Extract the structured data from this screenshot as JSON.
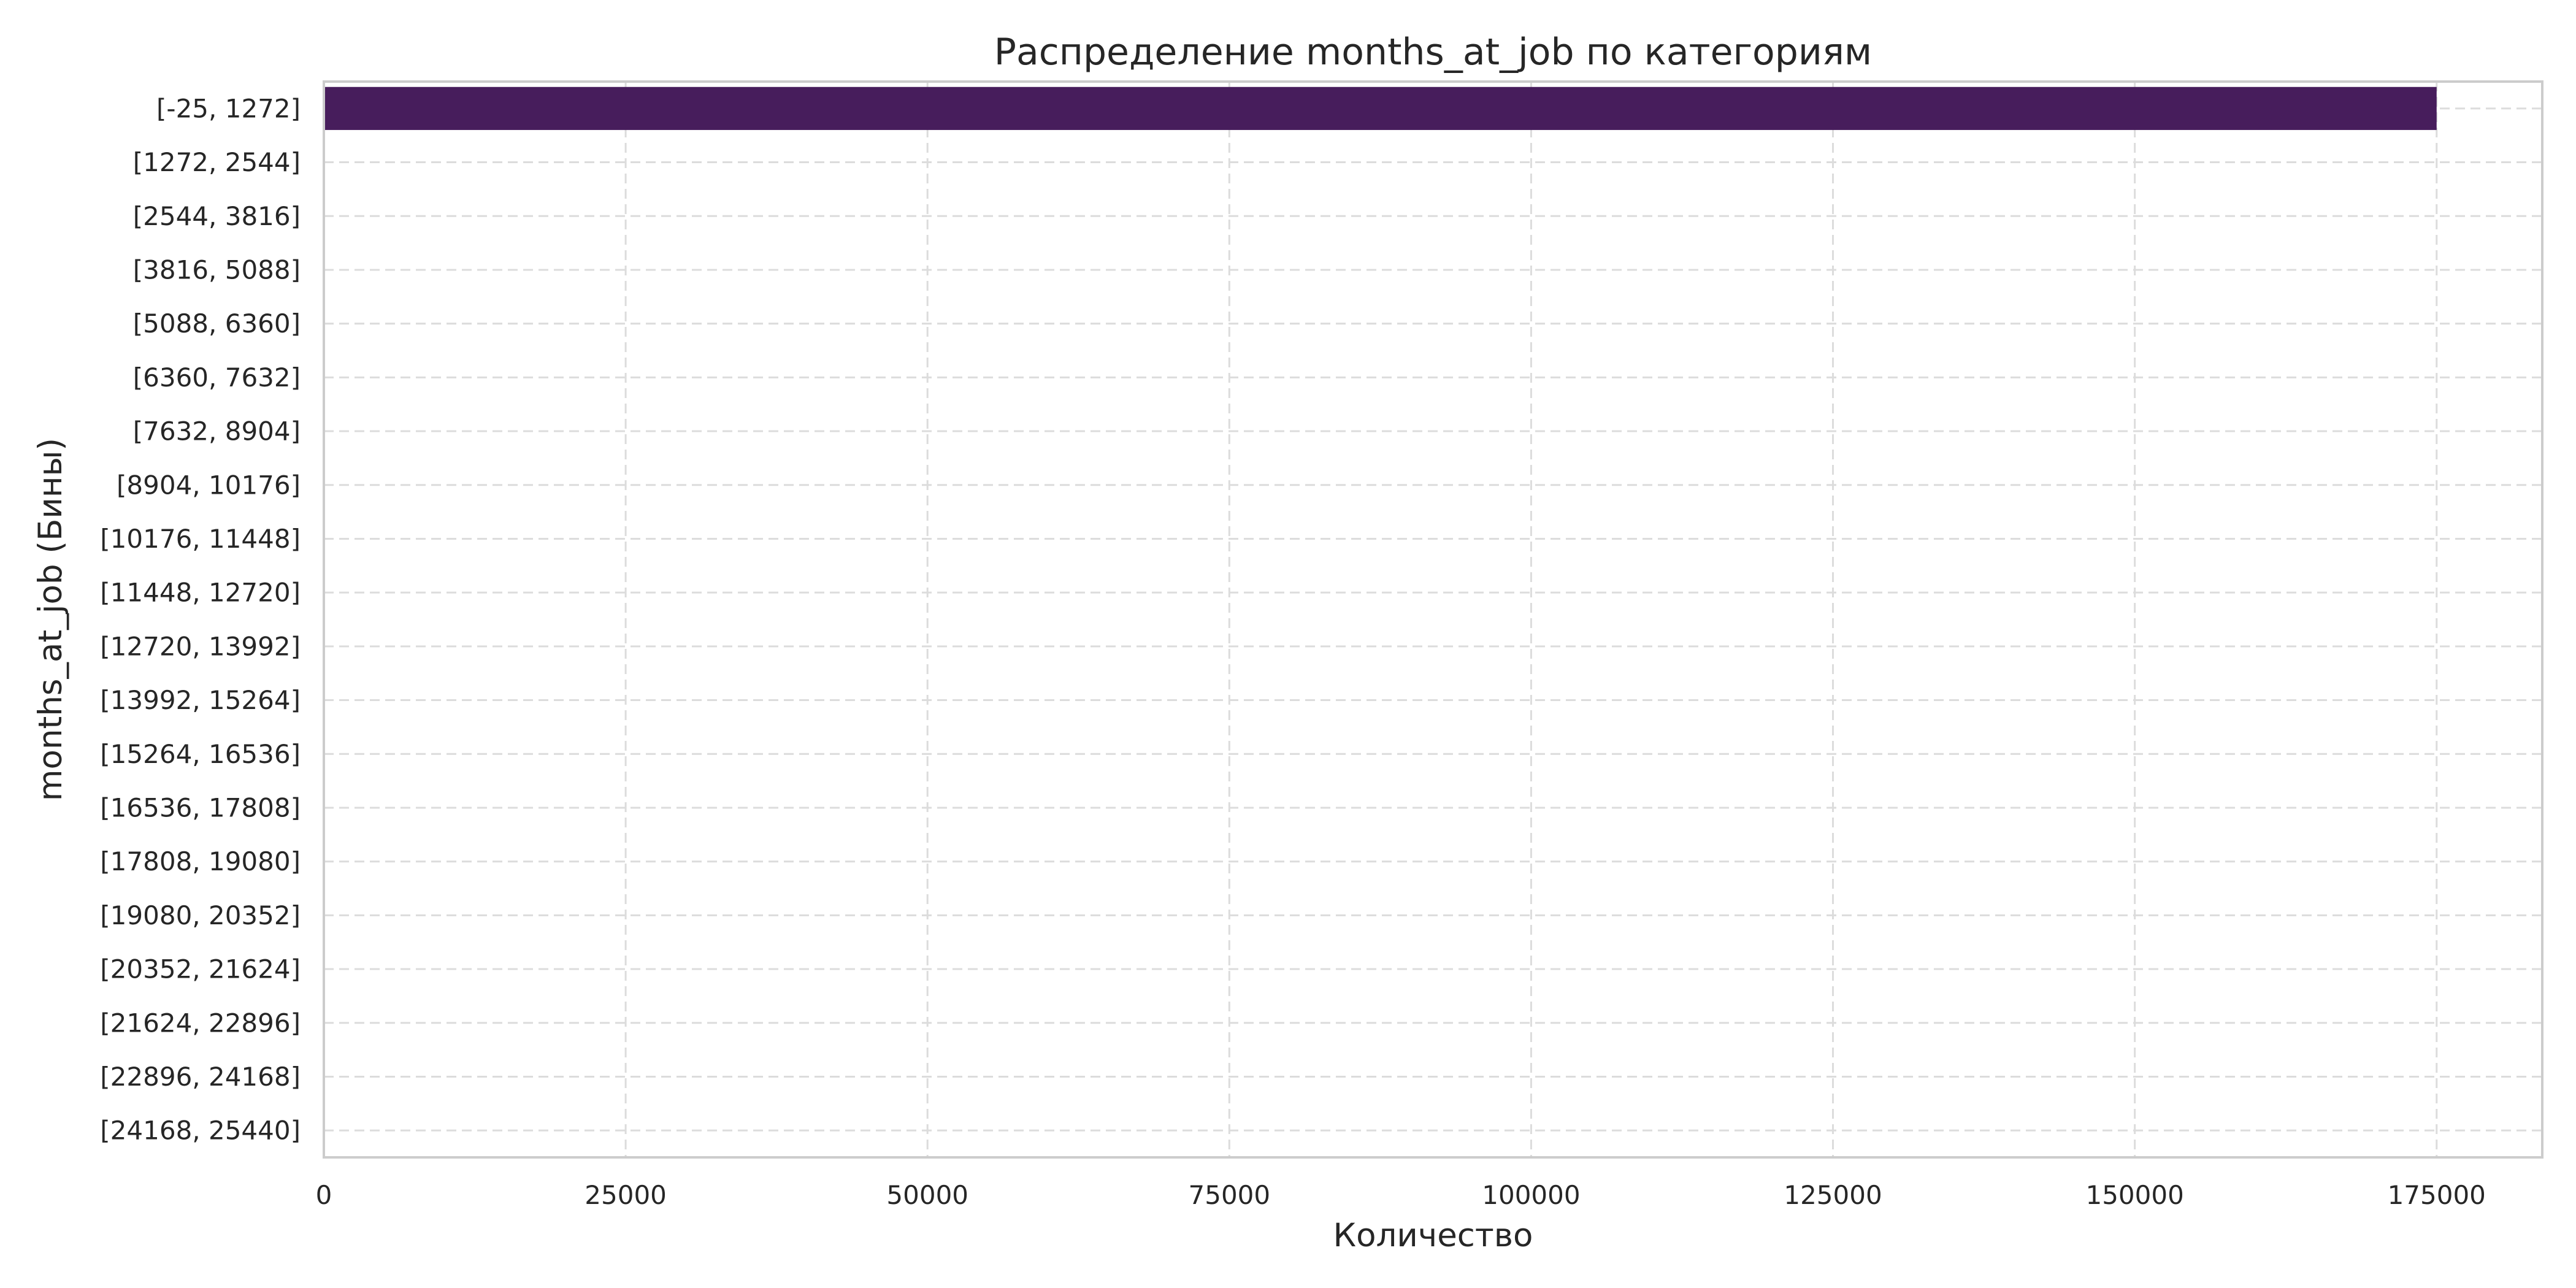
{
  "chart_data": {
    "type": "bar",
    "orientation": "horizontal",
    "title": "Распределение months_at_job по категориям",
    "xlabel": "Количество",
    "ylabel": "months_at_job (Бины)",
    "categories": [
      "[-25, 1272]",
      "[1272, 2544]",
      "[2544, 3816]",
      "[3816, 5088]",
      "[5088, 6360]",
      "[6360, 7632]",
      "[7632, 8904]",
      "[8904, 10176]",
      "[10176, 11448]",
      "[11448, 12720]",
      "[12720, 13992]",
      "[13992, 15264]",
      "[15264, 16536]",
      "[16536, 17808]",
      "[17808, 19080]",
      "[19080, 20352]",
      "[20352, 21624]",
      "[21624, 22896]",
      "[22896, 24168]",
      "[24168, 25440]"
    ],
    "values": [
      175000,
      0,
      0,
      0,
      0,
      0,
      0,
      0,
      0,
      0,
      0,
      0,
      0,
      0,
      0,
      0,
      0,
      0,
      0,
      0
    ],
    "xlim": [
      0,
      183750
    ],
    "xticks": [
      0,
      25000,
      50000,
      75000,
      100000,
      125000,
      150000,
      175000
    ],
    "grid": true,
    "legend": "none",
    "colors": {
      "bar": "#471d5c",
      "grid": "#dcdcdc",
      "spine": "#cccccc",
      "text": "#262626",
      "background": "#ffffff"
    }
  }
}
